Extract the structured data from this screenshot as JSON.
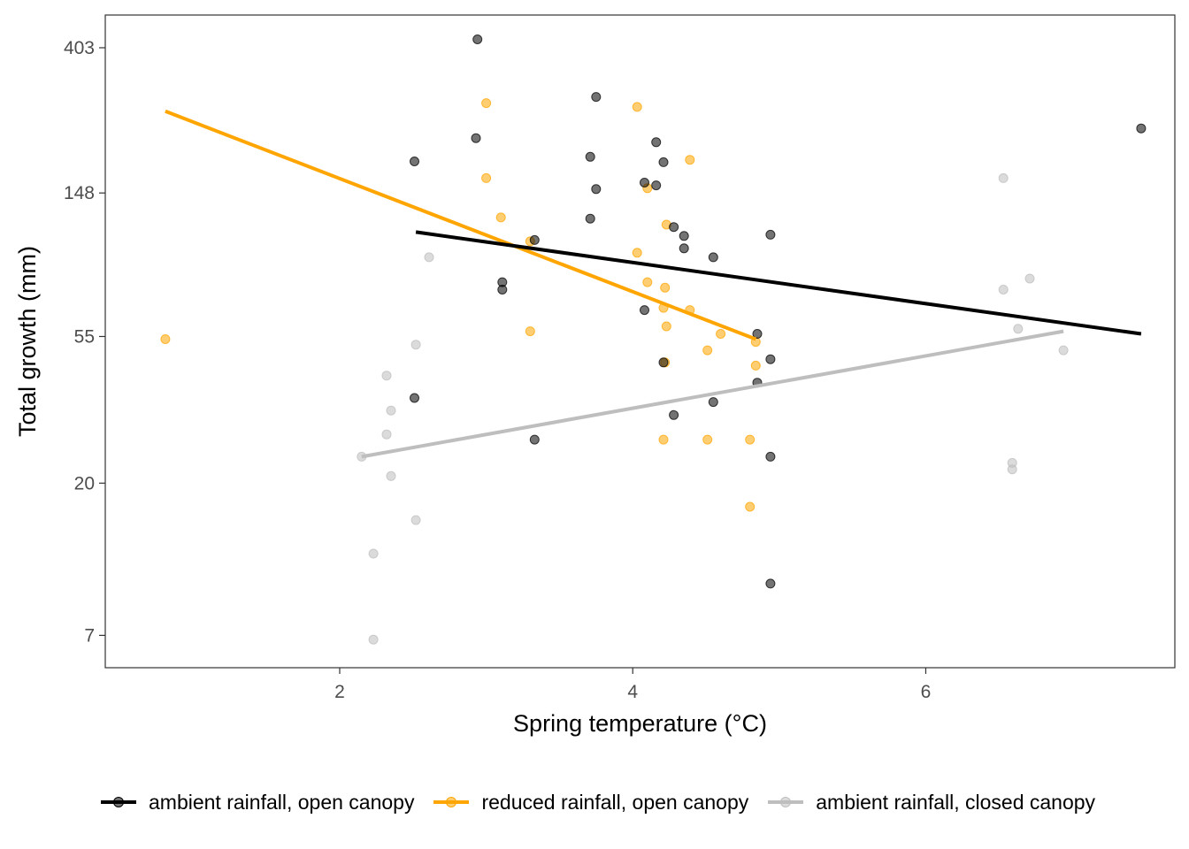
{
  "chart_data": {
    "type": "scatter",
    "xlabel": "Spring temperature (°C)",
    "ylabel": "Total growth (mm)",
    "x_ticks": [
      2,
      4,
      6
    ],
    "y_ticks": [
      7,
      20,
      55,
      148,
      403
    ],
    "y_scale": "log",
    "xlim": [
      0.4,
      7.7
    ],
    "ylim": [
      5.6,
      505
    ],
    "grid": false,
    "legend_position": "bottom",
    "series": [
      {
        "name": "ambient rainfall, open canopy",
        "color": "#000000",
        "points": [
          [
            2.94,
            427
          ],
          [
            2.93,
            216
          ],
          [
            2.51,
            184
          ],
          [
            3.75,
            287
          ],
          [
            3.71,
            190
          ],
          [
            3.75,
            152
          ],
          [
            4.16,
            210
          ],
          [
            4.21,
            183
          ],
          [
            4.08,
            159
          ],
          [
            4.16,
            156
          ],
          [
            3.71,
            124
          ],
          [
            4.28,
            117
          ],
          [
            4.35,
            110
          ],
          [
            4.35,
            101
          ],
          [
            3.33,
            107
          ],
          [
            4.55,
            95
          ],
          [
            4.94,
            111
          ],
          [
            7.47,
            231
          ],
          [
            3.11,
            80
          ],
          [
            3.11,
            76
          ],
          [
            4.08,
            66
          ],
          [
            4.85,
            56
          ],
          [
            4.94,
            47
          ],
          [
            4.21,
            46
          ],
          [
            4.85,
            40
          ],
          [
            2.51,
            36
          ],
          [
            4.55,
            35
          ],
          [
            4.28,
            32
          ],
          [
            3.33,
            27
          ],
          [
            4.94,
            24
          ],
          [
            4.94,
            10
          ]
        ],
        "fit": [
          [
            2.52,
            113
          ],
          [
            7.47,
            56
          ]
        ]
      },
      {
        "name": "reduced rainfall, open canopy",
        "color": "#ffa500",
        "points": [
          [
            0.81,
            54
          ],
          [
            3.0,
            275
          ],
          [
            4.03,
            268
          ],
          [
            3.0,
            164
          ],
          [
            4.39,
            186
          ],
          [
            4.1,
            153
          ],
          [
            3.1,
            125
          ],
          [
            4.23,
            119
          ],
          [
            3.3,
            106
          ],
          [
            4.03,
            98
          ],
          [
            4.1,
            80
          ],
          [
            4.22,
            77
          ],
          [
            4.21,
            67
          ],
          [
            4.39,
            66
          ],
          [
            4.23,
            59
          ],
          [
            3.3,
            57
          ],
          [
            4.6,
            56
          ],
          [
            4.84,
            53
          ],
          [
            4.51,
            50
          ],
          [
            4.22,
            46
          ],
          [
            4.84,
            45
          ],
          [
            4.21,
            27
          ],
          [
            4.51,
            27
          ],
          [
            4.8,
            27
          ],
          [
            4.8,
            17
          ]
        ],
        "fit": [
          [
            0.81,
            260
          ],
          [
            4.84,
            54
          ]
        ]
      },
      {
        "name": "ambient rainfall, closed canopy",
        "color": "#bebebe",
        "points": [
          [
            2.61,
            95
          ],
          [
            2.52,
            52
          ],
          [
            2.32,
            42
          ],
          [
            2.35,
            33
          ],
          [
            2.32,
            28
          ],
          [
            2.15,
            24
          ],
          [
            2.35,
            21
          ],
          [
            2.52,
            15.5
          ],
          [
            2.23,
            12.3
          ],
          [
            2.23,
            6.8
          ],
          [
            6.53,
            164
          ],
          [
            6.71,
            82
          ],
          [
            6.53,
            76
          ],
          [
            6.63,
            58
          ],
          [
            6.94,
            50
          ],
          [
            6.59,
            23
          ],
          [
            6.59,
            22
          ]
        ],
        "fit": [
          [
            2.15,
            24
          ],
          [
            6.94,
            57
          ]
        ]
      }
    ]
  }
}
